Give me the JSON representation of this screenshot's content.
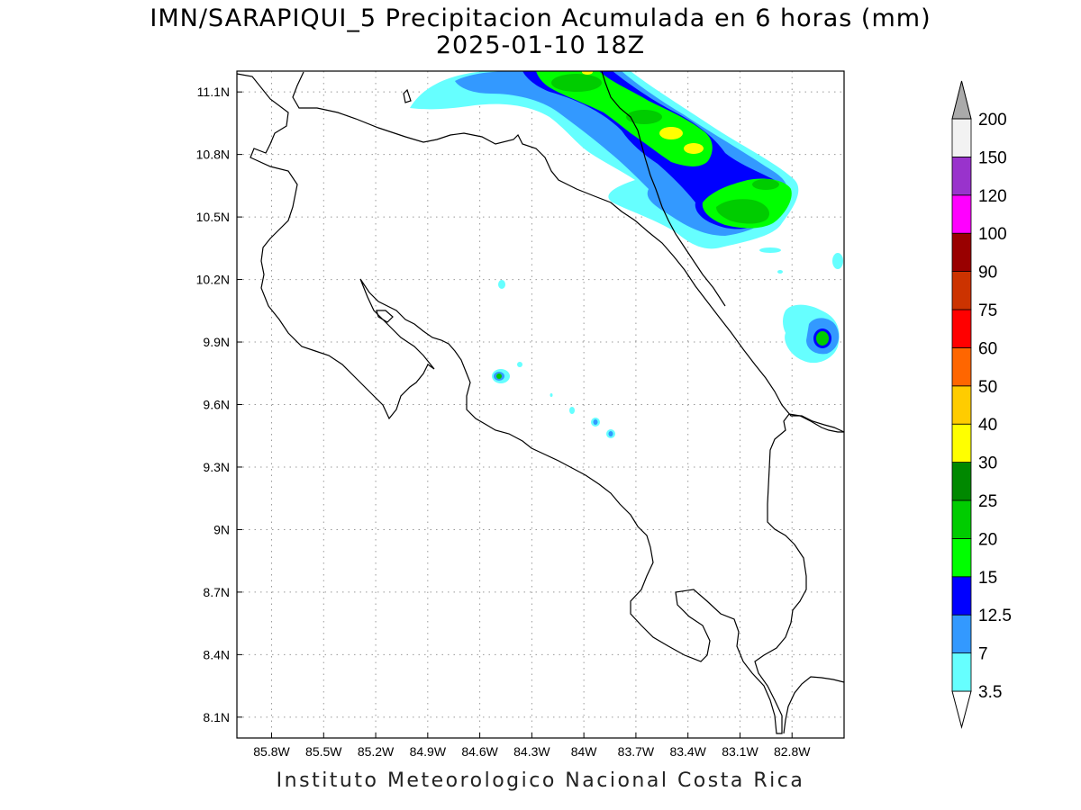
{
  "title_line1": "IMN/SARAPIQUI_5 Precipitacion Acumulada en 6 horas (mm)",
  "title_line2": "2025-01-10 18Z",
  "credit": "Instituto Meteorologico Nacional Costa Rica",
  "map": {
    "lon_range": [
      -86.0,
      -82.5
    ],
    "lat_range": [
      8.0,
      11.2
    ],
    "lon_ticks": [
      {
        "value": -85.8,
        "label": "85.8W"
      },
      {
        "value": -85.5,
        "label": "85.5W"
      },
      {
        "value": -85.2,
        "label": "85.2W"
      },
      {
        "value": -84.9,
        "label": "84.9W"
      },
      {
        "value": -84.6,
        "label": "84.6W"
      },
      {
        "value": -84.3,
        "label": "84.3W"
      },
      {
        "value": -84.0,
        "label": "84W"
      },
      {
        "value": -83.7,
        "label": "83.7W"
      },
      {
        "value": -83.4,
        "label": "83.4W"
      },
      {
        "value": -83.1,
        "label": "83.1W"
      },
      {
        "value": -82.8,
        "label": "82.8W"
      }
    ],
    "lat_ticks": [
      {
        "value": 11.1,
        "label": "11.1N"
      },
      {
        "value": 10.8,
        "label": "10.8N"
      },
      {
        "value": 10.5,
        "label": "10.5N"
      },
      {
        "value": 10.2,
        "label": "10.2N"
      },
      {
        "value": 9.9,
        "label": "9.9N"
      },
      {
        "value": 9.6,
        "label": "9.6N"
      },
      {
        "value": 9.3,
        "label": "9.3N"
      },
      {
        "value": 9.0,
        "label": "9N"
      },
      {
        "value": 8.7,
        "label": "8.7N"
      },
      {
        "value": 8.4,
        "label": "8.4N"
      },
      {
        "value": 8.1,
        "label": "8.1N"
      }
    ],
    "grid": "dotted"
  },
  "colorbar": {
    "levels": [
      "3.5",
      "7",
      "12.5",
      "15",
      "20",
      "25",
      "30",
      "40",
      "50",
      "60",
      "75",
      "90",
      "100",
      "120",
      "150",
      "200"
    ],
    "colors": [
      "#ffffff",
      "#66ffff",
      "#3399ff",
      "#0000ff",
      "#00ff00",
      "#00cc00",
      "#008800",
      "#ffff00",
      "#ffcc00",
      "#ff6600",
      "#ff0000",
      "#cc3300",
      "#990000",
      "#ff00ff",
      "#9933cc",
      "#f2f2f2",
      "#aaaaaa"
    ]
  }
}
